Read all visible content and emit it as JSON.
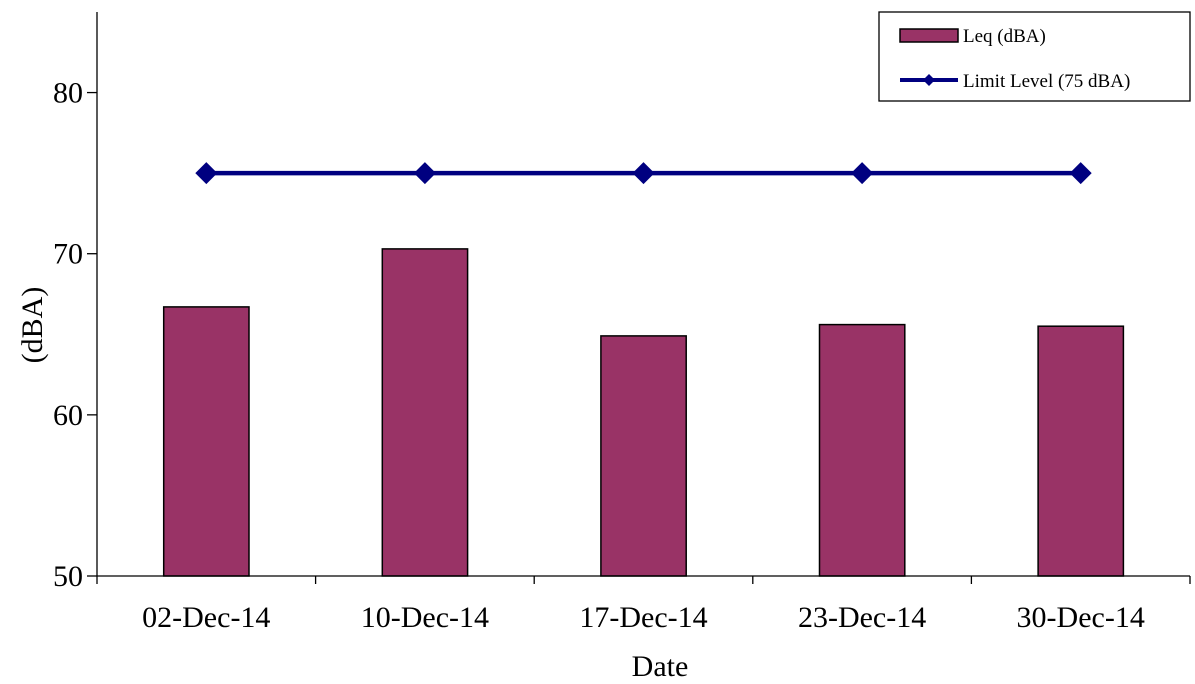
{
  "chart_data": {
    "type": "bar",
    "title": "",
    "xlabel": "Date",
    "ylabel": "(dBA)",
    "categories": [
      "02-Dec-14",
      "10-Dec-14",
      "17-Dec-14",
      "23-Dec-14",
      "30-Dec-14"
    ],
    "series": [
      {
        "name": "Leq (dBA)",
        "type": "bar",
        "color": "#993366",
        "values": [
          66.7,
          70.3,
          64.9,
          65.6,
          65.5
        ]
      },
      {
        "name": "Limit Level (75 dBA)",
        "type": "line",
        "color": "#000080",
        "marker": "diamond",
        "values": [
          75,
          75,
          75,
          75,
          75
        ]
      }
    ],
    "ylim": [
      50,
      85
    ],
    "yticks": [
      50,
      60,
      70,
      80
    ],
    "grid": false,
    "legend_position": "top-right"
  }
}
